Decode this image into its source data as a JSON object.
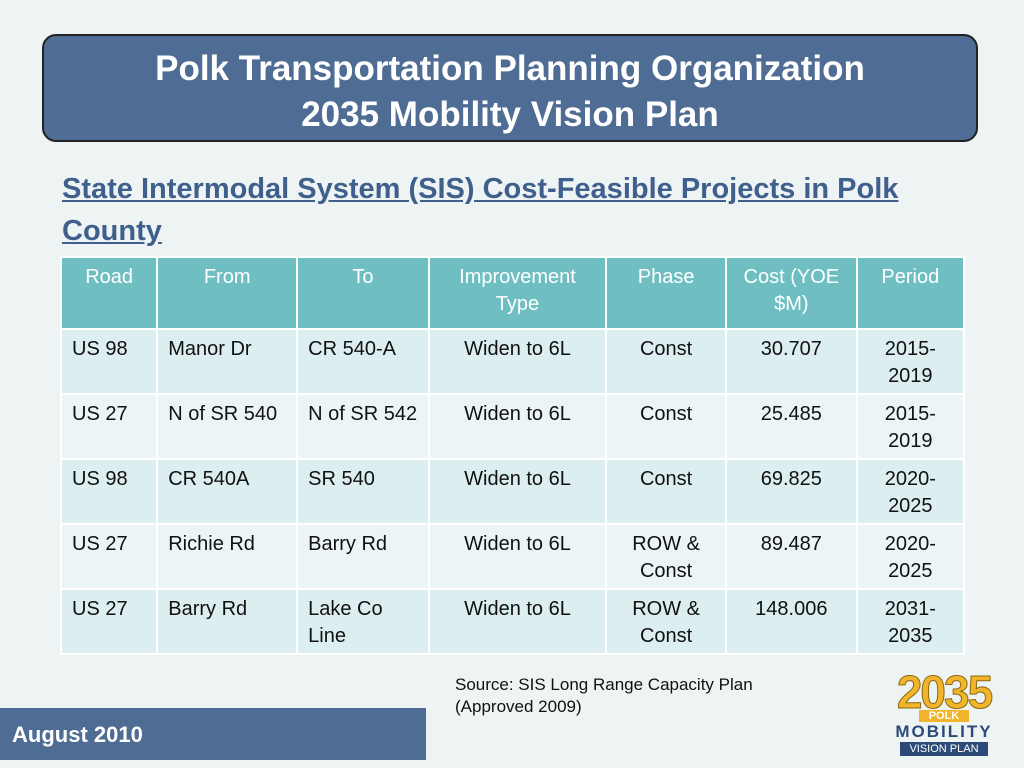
{
  "header": {
    "title": [
      "Polk Transportation Planning Organization",
      "2035 Mobility Vision Plan"
    ]
  },
  "subtitle": "State Intermodal System (SIS) Cost-Feasible Projects in Polk County",
  "table": {
    "columns": [
      "Road",
      "From",
      "To",
      "Improvement Type",
      "Phase",
      "Cost (YOE $M)",
      "Period"
    ],
    "rows": [
      [
        "US 98",
        "Manor Dr",
        "CR 540-A",
        "Widen to 6L",
        "Const",
        "30.707",
        "2015-2019"
      ],
      [
        "US 27",
        "N of SR 540",
        "N of SR 542",
        "Widen to 6L",
        "Const",
        "25.485",
        "2015-2019"
      ],
      [
        "US 98",
        "CR 540A",
        "SR 540",
        "Widen to 6L",
        "Const",
        "69.825",
        "2020-2025"
      ],
      [
        "US 27",
        "Richie Rd",
        "Barry Rd",
        "Widen to 6L",
        "ROW & Const",
        "89.487",
        "2020-2025"
      ],
      [
        "US 27",
        "Barry Rd",
        "Lake Co Line",
        "Widen to 6L",
        "ROW & Const",
        "148.006",
        "2031-2035"
      ]
    ]
  },
  "source": "Source: SIS Long Range Capacity Plan (Approved 2009)",
  "footer": "August 2010",
  "logo": {
    "year": "2035",
    "county": "POLK",
    "word": "MOBILITY",
    "tagline": "VISION PLAN"
  }
}
